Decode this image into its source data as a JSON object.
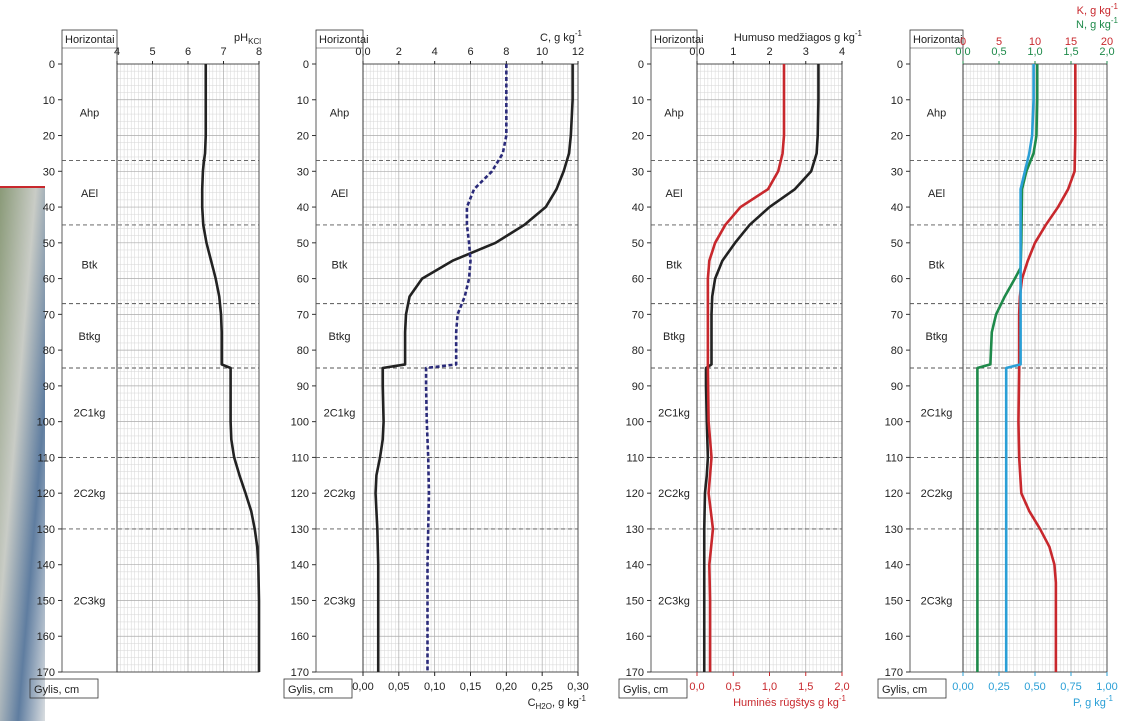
{
  "chart_data": [
    {
      "type": "line",
      "horizon_header": "Horizontai",
      "depth_label": "Gylis, cm",
      "horizons": [
        "Ahp",
        "AEl",
        "Btk",
        "Btkg",
        "2C1kg",
        "2C2kg",
        "2C3kg"
      ],
      "horizon_bounds": [
        27,
        45,
        67,
        85,
        110,
        130
      ],
      "ylim": [
        0,
        170
      ],
      "yticks": [
        0,
        10,
        20,
        30,
        40,
        50,
        60,
        70,
        80,
        90,
        100,
        110,
        120,
        130,
        140,
        150,
        160,
        170
      ],
      "grid": true,
      "axes": [
        {
          "position": "top",
          "color": "#222222",
          "label": {
            "text": "pH",
            "sub": "KCl"
          },
          "xlim": [
            4,
            8
          ],
          "xticks": [
            4,
            5,
            6,
            7,
            8
          ]
        }
      ],
      "series": [
        {
          "axis": 0,
          "color": "#222222",
          "dashed": false,
          "depth": [
            0,
            10,
            20,
            25,
            27,
            30,
            35,
            40,
            45,
            50,
            55,
            60,
            65,
            70,
            75,
            80,
            84,
            85,
            90,
            100,
            105,
            110,
            115,
            120,
            125,
            130,
            135,
            140,
            150,
            160,
            170
          ],
          "values": [
            6.5,
            6.5,
            6.5,
            6.48,
            6.45,
            6.42,
            6.4,
            6.4,
            6.43,
            6.52,
            6.65,
            6.78,
            6.88,
            6.93,
            6.95,
            6.95,
            6.95,
            7.2,
            7.2,
            7.2,
            7.22,
            7.3,
            7.45,
            7.62,
            7.78,
            7.88,
            7.95,
            7.98,
            8.0,
            8.0,
            8.0
          ]
        }
      ]
    },
    {
      "type": "line",
      "horizon_header": "Horizontai",
      "depth_label": "Gylis, cm",
      "horizons": [
        "Ahp",
        "AEl",
        "Btk",
        "Btkg",
        "2C1kg",
        "2C2kg",
        "2C3kg"
      ],
      "horizon_bounds": [
        27,
        45,
        67,
        85,
        110,
        130
      ],
      "ylim": [
        0,
        170
      ],
      "yticks": [
        0,
        10,
        20,
        30,
        40,
        50,
        60,
        70,
        80,
        90,
        100,
        110,
        120,
        130,
        140,
        150,
        160,
        170
      ],
      "grid": true,
      "axes": [
        {
          "position": "top",
          "color": "#222222",
          "label": {
            "text": "C, g kg",
            "sup": "-1"
          },
          "xlim": [
            0,
            12
          ],
          "xticks": [
            {
              "value": 0,
              "label": "0,0"
            },
            2,
            4,
            6,
            8,
            10,
            12
          ]
        },
        {
          "position": "bottom",
          "color": "#222222",
          "label": {
            "text": "C",
            "sub": "H2O",
            "text2": ", g kg",
            "sup": "-1"
          },
          "xlim": [
            0,
            0.3
          ],
          "xticks": [
            {
              "value": 0,
              "label": "0,00"
            },
            {
              "value": 0.05,
              "label": "0,05"
            },
            {
              "value": 0.1,
              "label": "0,10"
            },
            {
              "value": 0.15,
              "label": "0,15"
            },
            {
              "value": 0.2,
              "label": "0,20"
            },
            {
              "value": 0.25,
              "label": "0,25"
            },
            {
              "value": 0.3,
              "label": "0,30"
            }
          ]
        }
      ],
      "series": [
        {
          "axis": 0,
          "color": "#222222",
          "dashed": false,
          "depth": [
            0,
            10,
            20,
            25,
            30,
            35,
            40,
            45,
            50,
            55,
            60,
            65,
            70,
            75,
            84,
            85,
            90,
            100,
            105,
            110,
            115,
            120,
            130,
            140,
            150,
            160,
            170
          ],
          "values": [
            11.7,
            11.7,
            11.6,
            11.5,
            11.2,
            10.8,
            10.2,
            9.0,
            7.4,
            5.0,
            3.3,
            2.6,
            2.4,
            2.35,
            2.35,
            1.1,
            1.1,
            1.15,
            1.1,
            0.95,
            0.75,
            0.7,
            0.8,
            0.85,
            0.85,
            0.85,
            0.85
          ]
        },
        {
          "axis": 1,
          "color": "#2b2b7a",
          "dashed": true,
          "depth": [
            0,
            10,
            20,
            25,
            30,
            35,
            40,
            45,
            50,
            55,
            60,
            65,
            70,
            75,
            84,
            85,
            90,
            100,
            110,
            120,
            130,
            140,
            150,
            160,
            170
          ],
          "values": [
            0.2,
            0.2,
            0.2,
            0.195,
            0.18,
            0.155,
            0.145,
            0.145,
            0.148,
            0.15,
            0.148,
            0.142,
            0.132,
            0.13,
            0.13,
            0.088,
            0.088,
            0.089,
            0.091,
            0.092,
            0.091,
            0.09,
            0.09,
            0.09,
            0.09
          ]
        }
      ]
    },
    {
      "type": "line",
      "horizon_header": "Horizontai",
      "depth_label": "Gylis, cm",
      "horizons": [
        "Ahp",
        "AEl",
        "Btk",
        "Btkg",
        "2C1kg",
        "2C2kg",
        "2C3kg"
      ],
      "horizon_bounds": [
        27,
        45,
        67,
        85,
        110,
        130
      ],
      "ylim": [
        0,
        170
      ],
      "yticks": [
        0,
        10,
        20,
        30,
        40,
        50,
        60,
        70,
        80,
        90,
        100,
        110,
        120,
        130,
        140,
        150,
        160,
        170
      ],
      "grid": true,
      "axes": [
        {
          "position": "top",
          "color": "#222222",
          "label": {
            "text": "Humuso medžiagos g kg",
            "sup": "-1"
          },
          "xlim": [
            0,
            4
          ],
          "xticks": [
            {
              "value": 0,
              "label": "0,0"
            },
            1,
            2,
            3,
            4
          ]
        },
        {
          "position": "bottom",
          "color": "#c8282d",
          "label": {
            "text": "Huminės rūgštys g kg",
            "sup": "-1"
          },
          "xlim": [
            0,
            2
          ],
          "xticks": [
            {
              "value": 0,
              "label": "0,0"
            },
            {
              "value": 0.5,
              "label": "0,5"
            },
            {
              "value": 1,
              "label": "1,0"
            },
            {
              "value": 1.5,
              "label": "1,5"
            },
            {
              "value": 2,
              "label": "2,0"
            }
          ]
        }
      ],
      "series": [
        {
          "axis": 0,
          "color": "#222222",
          "dashed": false,
          "depth": [
            0,
            10,
            20,
            25,
            30,
            35,
            40,
            45,
            50,
            55,
            60,
            65,
            70,
            84,
            85,
            90,
            100,
            110,
            115,
            120,
            130,
            140,
            150,
            160,
            170
          ],
          "values": [
            3.35,
            3.35,
            3.33,
            3.3,
            3.15,
            2.7,
            2.0,
            1.45,
            1.05,
            0.7,
            0.5,
            0.42,
            0.4,
            0.4,
            0.25,
            0.25,
            0.27,
            0.3,
            0.27,
            0.22,
            0.2,
            0.2,
            0.2,
            0.2,
            0.2
          ]
        },
        {
          "axis": 1,
          "color": "#c8282d",
          "dashed": false,
          "depth": [
            0,
            10,
            20,
            25,
            30,
            35,
            40,
            45,
            50,
            55,
            60,
            70,
            85,
            100,
            110,
            120,
            130,
            140,
            150,
            170
          ],
          "values": [
            1.2,
            1.2,
            1.2,
            1.18,
            1.12,
            0.98,
            0.6,
            0.39,
            0.25,
            0.17,
            0.15,
            0.15,
            0.15,
            0.16,
            0.2,
            0.16,
            0.22,
            0.17,
            0.18,
            0.18
          ]
        }
      ]
    },
    {
      "type": "line",
      "horizon_header": "Horizontai",
      "depth_label": "Gylis, cm",
      "horizons": [
        "Ahp",
        "AEl",
        "Btk",
        "Btkg",
        "2C1kg",
        "2C2kg",
        "2C3kg"
      ],
      "horizon_bounds": [
        27,
        45,
        67,
        85,
        110,
        130
      ],
      "ylim": [
        0,
        170
      ],
      "yticks": [
        0,
        10,
        20,
        30,
        40,
        50,
        60,
        70,
        80,
        90,
        100,
        110,
        120,
        130,
        140,
        150,
        160,
        170
      ],
      "grid": true,
      "axes": [
        {
          "position": "top",
          "color": "#c8282d",
          "label": {
            "text": "K, g kg",
            "sup": "-1"
          },
          "xlim": [
            0,
            20
          ],
          "xticks": [
            0,
            5,
            10,
            15,
            20
          ]
        },
        {
          "position": "top",
          "color": "#1e8a4a",
          "label": {
            "text": "N, g kg",
            "sup": "-1"
          },
          "xlim": [
            0,
            2
          ],
          "xticks": [
            {
              "value": 0,
              "label": "0,0"
            },
            {
              "value": 0.5,
              "label": "0,5"
            },
            {
              "value": 1,
              "label": "1,0"
            },
            {
              "value": 1.5,
              "label": "1,5"
            },
            {
              "value": 2,
              "label": "2,0"
            }
          ]
        },
        {
          "position": "bottom",
          "color": "#2a9fd6",
          "label": {
            "text": "P, g kg",
            "sup": "-1"
          },
          "xlim": [
            0,
            1
          ],
          "xticks": [
            {
              "value": 0,
              "label": "0,00"
            },
            {
              "value": 0.25,
              "label": "0,25"
            },
            {
              "value": 0.5,
              "label": "0,50"
            },
            {
              "value": 0.75,
              "label": "0,75"
            },
            {
              "value": 1,
              "label": "1,00"
            }
          ]
        }
      ],
      "series": [
        {
          "axis": 1,
          "color": "#1e8a4a",
          "dashed": false,
          "depth": [
            0,
            10,
            20,
            25,
            30,
            35,
            50,
            57,
            60,
            65,
            70,
            75,
            84,
            85,
            100,
            170
          ],
          "values": [
            1.03,
            1.03,
            1.02,
            0.98,
            0.88,
            0.82,
            0.81,
            0.8,
            0.72,
            0.58,
            0.46,
            0.4,
            0.38,
            0.2,
            0.2,
            0.2
          ]
        },
        {
          "axis": 0,
          "color": "#c8282d",
          "dashed": false,
          "depth": [
            0,
            10,
            20,
            30,
            35,
            40,
            45,
            50,
            55,
            60,
            65,
            70,
            85,
            100,
            110,
            120,
            125,
            130,
            135,
            140,
            145,
            150,
            170
          ],
          "values": [
            15.6,
            15.6,
            15.6,
            15.5,
            14.6,
            13.2,
            11.5,
            10.0,
            9.0,
            8.2,
            7.9,
            7.8,
            7.8,
            7.7,
            7.8,
            8.1,
            9.2,
            10.7,
            12.0,
            12.7,
            12.9,
            12.9,
            12.9
          ]
        },
        {
          "axis": 2,
          "color": "#2a9fd6",
          "dashed": false,
          "depth": [
            0,
            10,
            20,
            25,
            30,
            35,
            60,
            84,
            85,
            100,
            170
          ],
          "values": [
            0.49,
            0.49,
            0.48,
            0.46,
            0.43,
            0.4,
            0.4,
            0.4,
            0.3,
            0.3,
            0.3
          ]
        }
      ]
    }
  ]
}
